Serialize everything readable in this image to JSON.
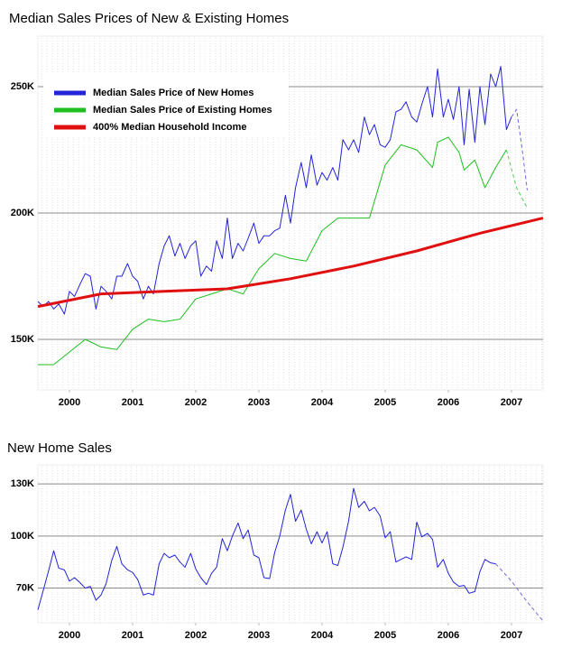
{
  "chart_data": [
    {
      "type": "line",
      "title": "Median Sales Prices of New & Existing Homes",
      "xlim": [
        2000,
        2008
      ],
      "xticks": [
        {
          "value": 2000.5,
          "label": "2000"
        },
        {
          "value": 2001.5,
          "label": "2001"
        },
        {
          "value": 2002.5,
          "label": "2002"
        },
        {
          "value": 2003.5,
          "label": "2003"
        },
        {
          "value": 2004.5,
          "label": "2004"
        },
        {
          "value": 2005.5,
          "label": "2005"
        },
        {
          "value": 2006.5,
          "label": "2006"
        },
        {
          "value": 2007.5,
          "label": "2007"
        }
      ],
      "ylim": [
        130000,
        270000
      ],
      "yticks": [
        {
          "value": 150000,
          "label": "150K"
        },
        {
          "value": 200000,
          "label": "200K"
        },
        {
          "value": 250000,
          "label": "250K"
        }
      ],
      "grid": true,
      "legend": "upper left",
      "series": [
        {
          "name": "Median Sales Price of New Homes",
          "color": "#2323d8",
          "line_width": 1,
          "x": [
            2000,
            2000.08,
            2000.17,
            2000.25,
            2000.33,
            2000.42,
            2000.5,
            2000.58,
            2000.67,
            2000.75,
            2000.83,
            2000.92,
            2001,
            2001.08,
            2001.17,
            2001.25,
            2001.33,
            2001.42,
            2001.5,
            2001.58,
            2001.67,
            2001.75,
            2001.83,
            2001.92,
            2002,
            2002.08,
            2002.17,
            2002.25,
            2002.33,
            2002.42,
            2002.5,
            2002.58,
            2002.67,
            2002.75,
            2002.83,
            2002.92,
            2003,
            2003.08,
            2003.17,
            2003.25,
            2003.33,
            2003.42,
            2003.5,
            2003.58,
            2003.67,
            2003.75,
            2003.83,
            2003.92,
            2004,
            2004.08,
            2004.17,
            2004.25,
            2004.33,
            2004.42,
            2004.5,
            2004.58,
            2004.67,
            2004.75,
            2004.83,
            2004.92,
            2005,
            2005.08,
            2005.17,
            2005.25,
            2005.33,
            2005.42,
            2005.5,
            2005.58,
            2005.67,
            2005.75,
            2005.83,
            2005.92,
            2006,
            2006.08,
            2006.17,
            2006.25,
            2006.33,
            2006.42,
            2006.5,
            2006.58,
            2006.67,
            2006.75,
            2006.83,
            2006.92,
            2007,
            2007.08,
            2007.17,
            2007.25,
            2007.33,
            2007.42,
            2007.5
          ],
          "values": [
            165000,
            163000,
            165000,
            162000,
            164000,
            160000,
            169000,
            167000,
            172000,
            176000,
            175000,
            162000,
            171000,
            169000,
            166000,
            175000,
            175000,
            180000,
            175000,
            173000,
            166000,
            171000,
            168000,
            180000,
            187000,
            191000,
            183000,
            188000,
            182000,
            187000,
            189000,
            175000,
            179000,
            177000,
            189000,
            182000,
            198000,
            182000,
            188000,
            185000,
            190000,
            196000,
            188000,
            191000,
            191000,
            193000,
            194000,
            207000,
            196000,
            210000,
            220000,
            210000,
            223000,
            211000,
            216000,
            213000,
            218000,
            213000,
            229000,
            225000,
            229000,
            224000,
            238000,
            231000,
            235000,
            227000,
            226000,
            229000,
            240000,
            241000,
            244000,
            238000,
            236000,
            243000,
            250000,
            238000,
            257000,
            238000,
            245000,
            237000,
            250000,
            227000,
            249000,
            228000,
            250000,
            235000,
            255000,
            250000,
            258000,
            233000,
            238000
          ]
        },
        {
          "name": "Median Sales Price of Existing Homes",
          "color": "#1fbf1f",
          "line_width": 1,
          "x": [
            2000,
            2000.25,
            2000.5,
            2000.75,
            2001,
            2001.25,
            2001.5,
            2001.75,
            2002,
            2002.25,
            2002.5,
            2002.75,
            2003,
            2003.25,
            2003.5,
            2003.75,
            2004,
            2004.25,
            2004.5,
            2004.75,
            2005,
            2005.25,
            2005.5,
            2005.75,
            2006,
            2006.25,
            2006.33,
            2006.5,
            2006.67,
            2006.75,
            2006.92,
            2007.08,
            2007.25,
            2007.42
          ],
          "values": [
            140000,
            140000,
            145000,
            150000,
            147000,
            146000,
            154000,
            158000,
            157000,
            158000,
            166000,
            168000,
            170000,
            168000,
            178000,
            184000,
            182000,
            181000,
            193000,
            198000,
            198000,
            198000,
            219000,
            227000,
            225000,
            218000,
            228000,
            230000,
            224000,
            217000,
            221000,
            210000,
            218000,
            225000
          ]
        },
        {
          "name": "400% Median Household Income",
          "color": "#e01010",
          "line_width": 3,
          "x": [
            2000,
            2001,
            2002,
            2003,
            2004,
            2005,
            2006,
            2007,
            2008
          ],
          "values": [
            163000,
            168000,
            169000,
            170000,
            174000,
            179000,
            185000,
            192000,
            198000
          ]
        },
        {
          "color": "#6a6ae0",
          "dash": true,
          "line_width": 1,
          "x": [
            2007.5,
            2007.58,
            2007.67,
            2007.75
          ],
          "values": [
            238000,
            241000,
            225000,
            209000
          ]
        },
        {
          "color": "#4fcf4f",
          "dash": true,
          "line_width": 1,
          "x": [
            2007.42,
            2007.58,
            2007.75
          ],
          "values": [
            225000,
            210000,
            202000
          ]
        }
      ]
    },
    {
      "type": "line",
      "title": "New Home Sales",
      "xlim": [
        2000,
        2008
      ],
      "xticks": [
        {
          "value": 2000.5,
          "label": "2000"
        },
        {
          "value": 2001.5,
          "label": "2001"
        },
        {
          "value": 2002.5,
          "label": "2002"
        },
        {
          "value": 2003.5,
          "label": "2003"
        },
        {
          "value": 2004.5,
          "label": "2004"
        },
        {
          "value": 2005.5,
          "label": "2005"
        },
        {
          "value": 2006.5,
          "label": "2006"
        },
        {
          "value": 2007.5,
          "label": "2007"
        }
      ],
      "ylim": [
        50000,
        141000
      ],
      "yticks": [
        {
          "value": 70000,
          "label": "70K"
        },
        {
          "value": 100000,
          "label": "100K"
        },
        {
          "value": 130000,
          "label": "130K"
        }
      ],
      "grid": true,
      "series": [
        {
          "color": "#2323d8",
          "line_width": 1,
          "x": [
            2000,
            2000.08,
            2000.17,
            2000.25,
            2000.33,
            2000.42,
            2000.5,
            2000.58,
            2000.67,
            2000.75,
            2000.83,
            2000.92,
            2001,
            2001.08,
            2001.17,
            2001.25,
            2001.33,
            2001.42,
            2001.5,
            2001.58,
            2001.67,
            2001.75,
            2001.83,
            2001.92,
            2002,
            2002.08,
            2002.17,
            2002.25,
            2002.33,
            2002.42,
            2002.5,
            2002.58,
            2002.67,
            2002.75,
            2002.83,
            2002.92,
            2003,
            2003.08,
            2003.17,
            2003.25,
            2003.33,
            2003.42,
            2003.5,
            2003.58,
            2003.67,
            2003.75,
            2003.83,
            2003.92,
            2004,
            2004.08,
            2004.17,
            2004.25,
            2004.33,
            2004.42,
            2004.5,
            2004.58,
            2004.67,
            2004.75,
            2004.83,
            2004.92,
            2005,
            2005.08,
            2005.17,
            2005.25,
            2005.33,
            2005.42,
            2005.5,
            2005.58,
            2005.67,
            2005.75,
            2005.83,
            2005.92,
            2006,
            2006.08,
            2006.17,
            2006.25,
            2006.33,
            2006.42,
            2006.5,
            2006.58,
            2006.67,
            2006.75,
            2006.83,
            2006.92,
            2007,
            2007.08,
            2007.17,
            2007.25
          ],
          "values": [
            57500,
            68000,
            80000,
            91500,
            81500,
            80500,
            74000,
            76000,
            73000,
            70000,
            71000,
            63000,
            66000,
            72500,
            86000,
            94000,
            84000,
            80500,
            79000,
            75000,
            66000,
            67000,
            66000,
            84000,
            90000,
            87500,
            89000,
            85000,
            82000,
            90000,
            81000,
            76000,
            72000,
            78500,
            82000,
            98500,
            91500,
            100000,
            107500,
            98500,
            103500,
            89000,
            87500,
            76000,
            75500,
            90500,
            100000,
            115000,
            124000,
            108500,
            115000,
            104000,
            95500,
            102500,
            96000,
            102500,
            84000,
            83000,
            93500,
            108500,
            127500,
            116500,
            120000,
            114500,
            116500,
            111500,
            99000,
            102500,
            85000,
            86500,
            88000,
            86500,
            108000,
            99500,
            101500,
            98000,
            82000,
            86500,
            78500,
            73500,
            71000,
            71500,
            67000,
            68000,
            79500,
            86500,
            84500,
            84000
          ]
        },
        {
          "color": "#6a6ae0",
          "dash": true,
          "line_width": 1,
          "x": [
            2007.25,
            2007.5,
            2007.75,
            2008
          ],
          "values": [
            84000,
            74000,
            62000,
            51000
          ]
        }
      ]
    }
  ]
}
